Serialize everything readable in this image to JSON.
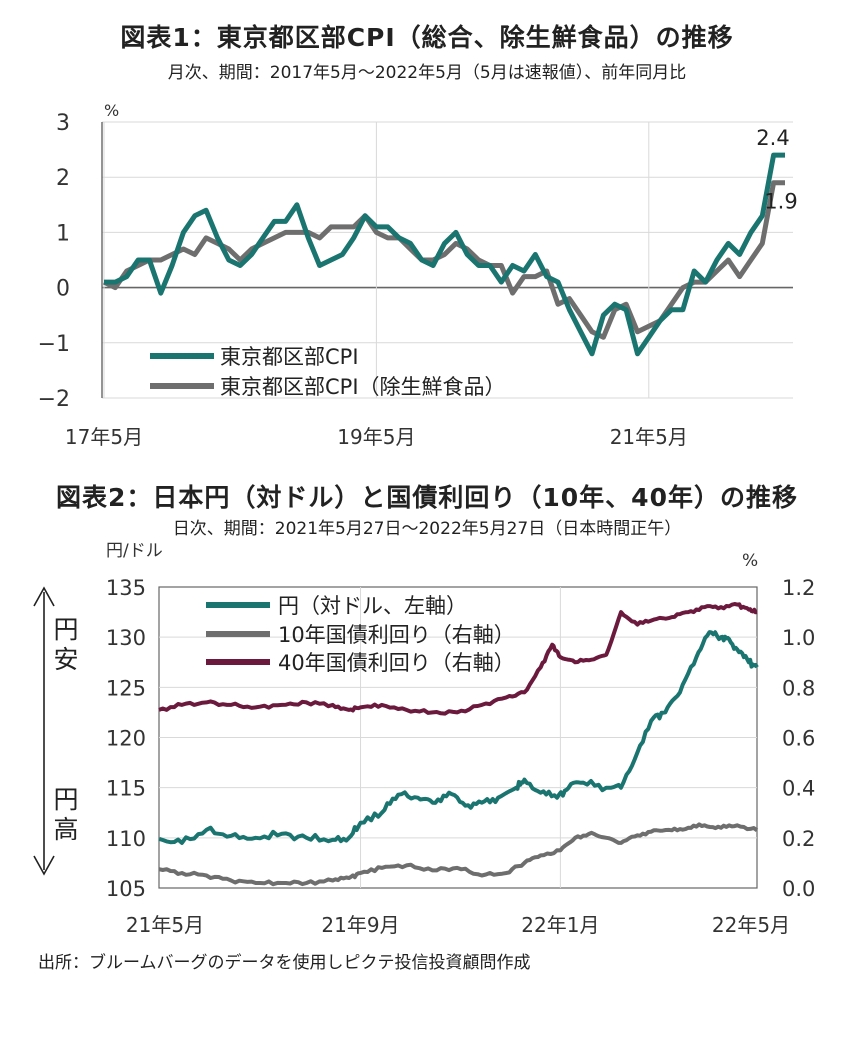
{
  "chart_data": [
    {
      "type": "line",
      "title": "図表1：東京都区部CPI（総合、除生鮮食品）の推移",
      "subtitle": "月次、期間：2017年5月～2022年5月（5月は速報値）、前年同月比",
      "ylabel": "%",
      "ylim": [
        -2,
        3
      ],
      "yticks": [
        3,
        2,
        1,
        0,
        -1,
        -2
      ],
      "x_start": "2017-05",
      "x_end": "2022-05",
      "xtick_labels": [
        {
          "label": "17年5月",
          "month_index": 0
        },
        {
          "label": "19年5月",
          "month_index": 24
        },
        {
          "label": "21年5月",
          "month_index": 48
        }
      ],
      "annotations": [
        {
          "text": "2.4",
          "series": 0
        },
        {
          "text": "1.9",
          "series": 1
        }
      ],
      "legend": "bottom-left",
      "series": [
        {
          "name": "東京都区部CPI",
          "color": "#1a7470",
          "values": [
            0.1,
            0.1,
            0.2,
            0.5,
            0.5,
            -0.1,
            0.4,
            1.0,
            1.3,
            1.4,
            0.9,
            0.5,
            0.4,
            0.6,
            0.9,
            1.2,
            1.2,
            1.5,
            0.9,
            0.4,
            0.5,
            0.6,
            0.9,
            1.3,
            1.1,
            1.1,
            0.9,
            0.8,
            0.5,
            0.4,
            0.8,
            1.0,
            0.6,
            0.4,
            0.4,
            0.1,
            0.4,
            0.3,
            0.6,
            0.2,
            0.1,
            -0.4,
            -0.8,
            -1.2,
            -0.5,
            -0.3,
            -0.4,
            -1.2,
            -0.9,
            -0.6,
            -0.4,
            -0.4,
            0.3,
            0.1,
            0.5,
            0.8,
            0.6,
            1.0,
            1.3,
            2.4,
            2.4
          ]
        },
        {
          "name": "東京都区部CPI（除生鮮食品）",
          "color": "#6e6e6e",
          "values": [
            0.1,
            0.0,
            0.3,
            0.4,
            0.5,
            0.5,
            0.6,
            0.7,
            0.6,
            0.9,
            0.8,
            0.7,
            0.5,
            0.7,
            0.8,
            0.9,
            1.0,
            1.0,
            1.0,
            0.9,
            1.1,
            1.1,
            1.1,
            1.3,
            1.0,
            0.9,
            0.9,
            0.7,
            0.5,
            0.5,
            0.6,
            0.8,
            0.7,
            0.5,
            0.4,
            0.4,
            -0.1,
            0.2,
            0.2,
            0.3,
            -0.3,
            -0.2,
            -0.5,
            -0.8,
            -0.9,
            -0.4,
            -0.3,
            -0.8,
            -0.7,
            -0.6,
            -0.3,
            0.0,
            0.1,
            0.1,
            0.3,
            0.5,
            0.2,
            0.5,
            0.8,
            1.9,
            1.9
          ]
        }
      ]
    },
    {
      "type": "line",
      "title": "図表2：日本円（対ドル）と国債利回り（10年、40年）の推移",
      "subtitle": "日次、期間：2021年5月27日～2022年5月27日（日本時間正午）",
      "ylabel_left": "円/ドル",
      "ylabel_right": "%",
      "ylim_left": [
        105,
        135
      ],
      "yticks_left": [
        135,
        130,
        125,
        120,
        115,
        110,
        105
      ],
      "ylim_right": [
        0.0,
        1.2
      ],
      "yticks_right": [
        "1.2",
        "1.0",
        "0.8",
        "0.6",
        "0.4",
        "0.2",
        "0.0"
      ],
      "x_start": "2021-05-27",
      "x_end": "2022-05-27",
      "xtick_labels": [
        {
          "label": "21年5月",
          "date": "2021-05-27"
        },
        {
          "label": "21年9月",
          "date": "2021-09-27"
        },
        {
          "label": "22年1月",
          "date": "2022-01-27"
        },
        {
          "label": "22年5月",
          "date": "2022-05-27"
        }
      ],
      "side_labels": {
        "top": "円安",
        "bottom": "円高"
      },
      "legend": "top-left",
      "series": [
        {
          "name": "円（対ドル、左軸）",
          "axis": "left",
          "color": "#1a7470",
          "points": [
            [
              "2021-05-27",
              109.9
            ],
            [
              "2021-06-10",
              109.5
            ],
            [
              "2021-06-25",
              110.8
            ],
            [
              "2021-07-10",
              110.2
            ],
            [
              "2021-07-25",
              110.0
            ],
            [
              "2021-08-10",
              110.4
            ],
            [
              "2021-08-25",
              110.0
            ],
            [
              "2021-09-10",
              109.8
            ],
            [
              "2021-09-20",
              110.0
            ],
            [
              "2021-09-27",
              111.5
            ],
            [
              "2021-10-10",
              112.5
            ],
            [
              "2021-10-20",
              114.3
            ],
            [
              "2021-11-01",
              114.0
            ],
            [
              "2021-11-10",
              113.5
            ],
            [
              "2021-11-20",
              114.5
            ],
            [
              "2021-11-30",
              113.2
            ],
            [
              "2021-12-10",
              113.5
            ],
            [
              "2021-12-20",
              114.0
            ],
            [
              "2021-12-31",
              115.0
            ],
            [
              "2022-01-05",
              115.8
            ],
            [
              "2022-01-15",
              114.5
            ],
            [
              "2022-01-25",
              114.0
            ],
            [
              "2022-02-01",
              115.0
            ],
            [
              "2022-02-10",
              115.5
            ],
            [
              "2022-02-24",
              115.0
            ],
            [
              "2022-03-05",
              115.0
            ],
            [
              "2022-03-15",
              118.5
            ],
            [
              "2022-03-25",
              122.0
            ],
            [
              "2022-04-01",
              122.5
            ],
            [
              "2022-04-10",
              124.5
            ],
            [
              "2022-04-20",
              128.0
            ],
            [
              "2022-04-28",
              130.5
            ],
            [
              "2022-05-05",
              130.0
            ],
            [
              "2022-05-10",
              129.8
            ],
            [
              "2022-05-16",
              128.5
            ],
            [
              "2022-05-22",
              127.5
            ],
            [
              "2022-05-27",
              127.0
            ]
          ]
        },
        {
          "name": "10年国債利回り（右軸）",
          "axis": "right",
          "color": "#6e6e6e",
          "points": [
            [
              "2021-05-27",
              0.075
            ],
            [
              "2021-06-10",
              0.06
            ],
            [
              "2021-06-25",
              0.05
            ],
            [
              "2021-07-10",
              0.03
            ],
            [
              "2021-07-25",
              0.02
            ],
            [
              "2021-08-10",
              0.02
            ],
            [
              "2021-08-25",
              0.02
            ],
            [
              "2021-09-10",
              0.03
            ],
            [
              "2021-09-20",
              0.04
            ],
            [
              "2021-09-27",
              0.06
            ],
            [
              "2021-10-10",
              0.08
            ],
            [
              "2021-10-25",
              0.09
            ],
            [
              "2021-11-10",
              0.07
            ],
            [
              "2021-11-25",
              0.08
            ],
            [
              "2021-12-10",
              0.05
            ],
            [
              "2021-12-25",
              0.06
            ],
            [
              "2022-01-05",
              0.1
            ],
            [
              "2022-01-15",
              0.13
            ],
            [
              "2022-01-27",
              0.15
            ],
            [
              "2022-02-05",
              0.2
            ],
            [
              "2022-02-15",
              0.22
            ],
            [
              "2022-02-24",
              0.2
            ],
            [
              "2022-03-05",
              0.18
            ],
            [
              "2022-03-15",
              0.21
            ],
            [
              "2022-03-25",
              0.23
            ],
            [
              "2022-04-05",
              0.23
            ],
            [
              "2022-04-15",
              0.24
            ],
            [
              "2022-04-25",
              0.25
            ],
            [
              "2022-05-05",
              0.24
            ],
            [
              "2022-05-15",
              0.25
            ],
            [
              "2022-05-27",
              0.23
            ]
          ]
        },
        {
          "name": "40年国債利回り（右軸）",
          "axis": "right",
          "color": "#6b1a3e",
          "points": [
            [
              "2021-05-27",
              0.71
            ],
            [
              "2021-06-10",
              0.73
            ],
            [
              "2021-06-25",
              0.74
            ],
            [
              "2021-07-10",
              0.73
            ],
            [
              "2021-07-25",
              0.72
            ],
            [
              "2021-08-10",
              0.73
            ],
            [
              "2021-08-25",
              0.74
            ],
            [
              "2021-09-10",
              0.73
            ],
            [
              "2021-09-20",
              0.71
            ],
            [
              "2021-09-27",
              0.72
            ],
            [
              "2021-10-10",
              0.73
            ],
            [
              "2021-10-25",
              0.71
            ],
            [
              "2021-11-10",
              0.7
            ],
            [
              "2021-11-25",
              0.7
            ],
            [
              "2021-12-10",
              0.73
            ],
            [
              "2021-12-25",
              0.76
            ],
            [
              "2022-01-05",
              0.78
            ],
            [
              "2022-01-15",
              0.88
            ],
            [
              "2022-01-22",
              0.97
            ],
            [
              "2022-01-27",
              0.92
            ],
            [
              "2022-02-05",
              0.9
            ],
            [
              "2022-02-15",
              0.91
            ],
            [
              "2022-02-24",
              0.93
            ],
            [
              "2022-03-05",
              1.1
            ],
            [
              "2022-03-15",
              1.05
            ],
            [
              "2022-03-25",
              1.07
            ],
            [
              "2022-04-05",
              1.08
            ],
            [
              "2022-04-15",
              1.1
            ],
            [
              "2022-04-25",
              1.12
            ],
            [
              "2022-05-05",
              1.12
            ],
            [
              "2022-05-15",
              1.13
            ],
            [
              "2022-05-22",
              1.11
            ],
            [
              "2022-05-27",
              1.1
            ]
          ]
        }
      ]
    }
  ],
  "source": "出所：ブルームバーグのデータを使用しピクテ投信投資顧問作成"
}
